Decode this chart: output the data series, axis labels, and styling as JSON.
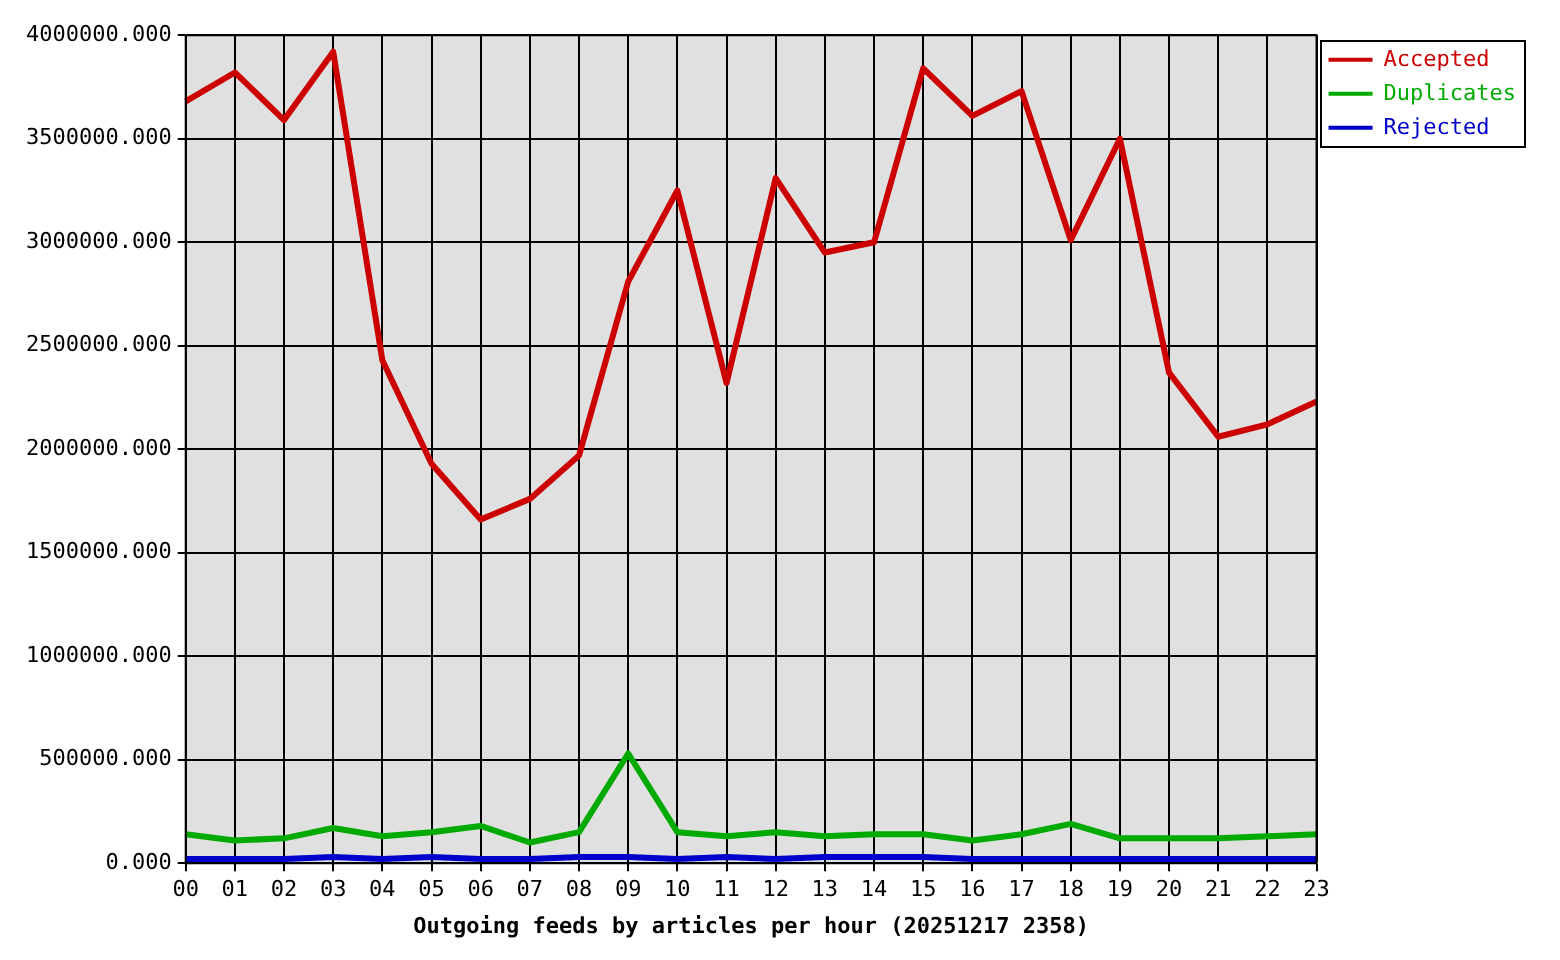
{
  "chart_data": {
    "type": "line",
    "xlabel": "Outgoing feeds by articles per hour (20251217 2358)",
    "categories": [
      "00",
      "01",
      "02",
      "03",
      "04",
      "05",
      "06",
      "07",
      "08",
      "09",
      "10",
      "11",
      "12",
      "13",
      "14",
      "15",
      "16",
      "17",
      "18",
      "19",
      "20",
      "21",
      "22",
      "23"
    ],
    "series": [
      {
        "name": "Accepted",
        "color": "#cc0000",
        "values": [
          3680000,
          3820000,
          3590000,
          3920000,
          2430000,
          1930000,
          1660000,
          1760000,
          1970000,
          2810000,
          3250000,
          2320000,
          3310000,
          2950000,
          3000000,
          3840000,
          3610000,
          3730000,
          3010000,
          3500000,
          2370000,
          2060000,
          2120000,
          2230000
        ]
      },
      {
        "name": "Duplicates",
        "color": "#00aa00",
        "values": [
          140000,
          110000,
          120000,
          170000,
          130000,
          150000,
          180000,
          100000,
          150000,
          530000,
          150000,
          130000,
          150000,
          130000,
          140000,
          140000,
          110000,
          140000,
          190000,
          120000,
          120000,
          120000,
          130000,
          140000
        ]
      },
      {
        "name": "Rejected",
        "color": "#0000cc",
        "values": [
          20000,
          20000,
          20000,
          30000,
          20000,
          30000,
          20000,
          20000,
          30000,
          30000,
          20000,
          30000,
          20000,
          30000,
          30000,
          30000,
          20000,
          20000,
          20000,
          20000,
          20000,
          20000,
          20000,
          20000
        ]
      }
    ],
    "ylim": [
      0,
      4000000
    ],
    "yticks": [
      {
        "value": 0,
        "label": "0.000"
      },
      {
        "value": 500000,
        "label": "500000.000"
      },
      {
        "value": 1000000,
        "label": "1000000.000"
      },
      {
        "value": 1500000,
        "label": "1500000.000"
      },
      {
        "value": 2000000,
        "label": "2000000.000"
      },
      {
        "value": 2500000,
        "label": "2500000.000"
      },
      {
        "value": 3000000,
        "label": "3000000.000"
      },
      {
        "value": 3500000,
        "label": "3500000.000"
      },
      {
        "value": 4000000,
        "label": "4000000.000"
      }
    ],
    "grid": true,
    "legend": "top right",
    "marker": "none",
    "line_style": "solid"
  }
}
